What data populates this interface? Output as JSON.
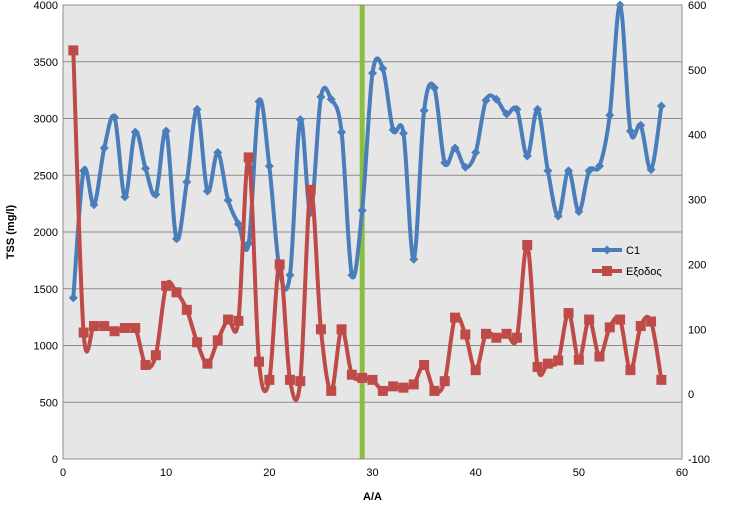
{
  "chart_data": {
    "type": "line",
    "xlabel": "A/A",
    "ylabel": "TSS (mg/l)",
    "xlim": [
      0,
      60
    ],
    "x_ticks": [
      0,
      10,
      20,
      30,
      40,
      50,
      60
    ],
    "ylim_left": [
      0,
      4000
    ],
    "y_ticks_left": [
      0,
      500,
      1000,
      1500,
      2000,
      2500,
      3000,
      3500,
      4000
    ],
    "ylim_right": [
      -100,
      600
    ],
    "y_ticks_right": [
      -100,
      0,
      100,
      200,
      300,
      400,
      500,
      600
    ],
    "grid": true,
    "legend_position": "right",
    "plot_background": "#e6e6e6",
    "vertical_marker": {
      "x": 29,
      "color": "#8cbf3f"
    },
    "series": [
      {
        "name": "C1",
        "axis": "left",
        "color": "#4a7ebb",
        "marker": "diamond",
        "x": [
          1,
          2,
          3,
          4,
          5,
          6,
          7,
          8,
          9,
          10,
          11,
          12,
          13,
          14,
          15,
          16,
          17,
          18,
          19,
          20,
          21,
          22,
          23,
          24,
          25,
          26,
          27,
          28,
          29,
          30,
          31,
          32,
          33,
          34,
          35,
          36,
          37,
          38,
          39,
          40,
          41,
          42,
          43,
          44,
          45,
          46,
          47,
          48,
          49,
          50,
          51,
          52,
          53,
          54,
          55,
          56,
          57,
          58
        ],
        "values": [
          1420,
          2540,
          2240,
          2740,
          3010,
          2310,
          2880,
          2560,
          2330,
          2890,
          1940,
          2440,
          3080,
          2360,
          2700,
          2280,
          2070,
          1900,
          3150,
          2580,
          1660,
          1620,
          2990,
          2170,
          3190,
          3170,
          2880,
          1620,
          2190,
          3400,
          3440,
          2900,
          2870,
          1760,
          3070,
          3270,
          2610,
          2740,
          2570,
          2700,
          3160,
          3170,
          3040,
          3080,
          2670,
          3080,
          2540,
          2140,
          2540,
          2180,
          2540,
          2580,
          3030,
          4000,
          2890,
          2940,
          2550,
          3110
        ]
      },
      {
        "name": "Εξοδος",
        "axis": "right",
        "color": "#be4b48",
        "marker": "square",
        "x": [
          1,
          2,
          3,
          4,
          5,
          6,
          7,
          8,
          9,
          10,
          11,
          12,
          13,
          14,
          15,
          16,
          17,
          18,
          19,
          20,
          21,
          22,
          23,
          24,
          25,
          26,
          27,
          28,
          29,
          30,
          31,
          32,
          33,
          34,
          35,
          36,
          37,
          38,
          39,
          40,
          41,
          42,
          43,
          44,
          45,
          46,
          47,
          48,
          49,
          50,
          51,
          52,
          53,
          54,
          55,
          56,
          57,
          58
        ],
        "values": [
          530,
          95,
          105,
          105,
          97,
          102,
          102,
          45,
          60,
          167,
          157,
          130,
          80,
          47,
          83,
          115,
          113,
          365,
          50,
          22,
          200,
          22,
          20,
          315,
          100,
          5,
          100,
          30,
          25,
          22,
          5,
          12,
          10,
          15,
          45,
          5,
          20,
          118,
          92,
          37,
          93,
          87,
          93,
          87,
          230,
          42,
          47,
          52,
          125,
          53,
          115,
          58,
          103,
          115,
          37,
          105,
          112,
          22
        ]
      }
    ]
  }
}
